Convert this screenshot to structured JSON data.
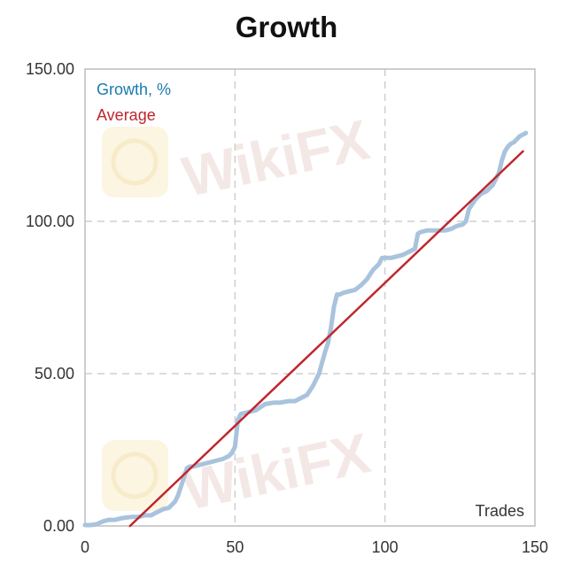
{
  "chart_data": {
    "type": "line",
    "title": "Growth",
    "xlabel": "Trades",
    "ylabel": "",
    "xlim": [
      0,
      150
    ],
    "ylim": [
      0,
      150
    ],
    "x_ticks": [
      "0",
      "50",
      "100",
      "150"
    ],
    "y_ticks": [
      "0.00",
      "50.00",
      "100.00",
      "150.00"
    ],
    "grid": true,
    "legend_position": "top-left",
    "series": [
      {
        "name": "Growth, %",
        "color": "#a9c3dd",
        "legend_color": "#1a7bb0",
        "x": [
          0,
          2,
          4,
          6,
          8,
          10,
          12,
          14,
          16,
          18,
          20,
          22,
          24,
          26,
          28,
          30,
          31,
          32,
          33,
          34,
          35,
          36,
          38,
          40,
          42,
          44,
          46,
          48,
          49,
          50,
          51,
          52,
          53,
          55,
          57,
          60,
          63,
          65,
          68,
          70,
          72,
          74,
          76,
          78,
          80,
          81,
          82,
          83,
          84,
          85,
          86,
          88,
          90,
          92,
          94,
          96,
          98,
          99,
          100,
          101,
          102,
          104,
          106,
          108,
          110,
          111,
          112,
          114,
          116,
          118,
          120,
          122,
          124,
          126,
          127,
          128,
          130,
          132,
          134,
          136,
          138,
          139,
          140,
          141,
          142,
          143,
          144,
          145,
          146,
          147
        ],
        "y": [
          0.3,
          0.3,
          0.6,
          1.5,
          2,
          2,
          2.5,
          2.8,
          3,
          3,
          3.5,
          3.5,
          4.5,
          5.5,
          6,
          8,
          10,
          13,
          16,
          19,
          19.5,
          19.5,
          20,
          20.5,
          21,
          21.5,
          22,
          23,
          24,
          26,
          35,
          36.8,
          37,
          37.5,
          38,
          40,
          40.5,
          40.5,
          41,
          41,
          42,
          43,
          46,
          50,
          57,
          60,
          65,
          72,
          76,
          76,
          76.5,
          77,
          77.5,
          79,
          81,
          84,
          86,
          88,
          88,
          88,
          88,
          88.5,
          89,
          90,
          91,
          96,
          96.5,
          97,
          97,
          97,
          97,
          97.5,
          98.5,
          99,
          100,
          104,
          107,
          109,
          110,
          112,
          116,
          120,
          123,
          124.5,
          125.5,
          126,
          127,
          128,
          128.5,
          129
        ]
      },
      {
        "name": "Average",
        "color": "#c0262d",
        "legend_color": "#c0262d",
        "x": [
          15,
          146
        ],
        "y": [
          0,
          123
        ]
      }
    ]
  },
  "watermark": {
    "text": "WikiFX"
  }
}
